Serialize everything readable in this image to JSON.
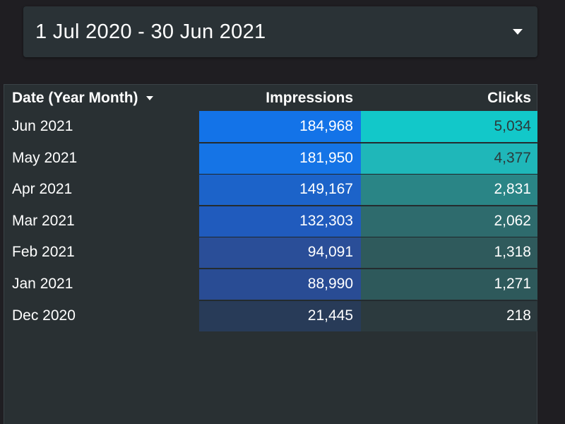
{
  "date_range": {
    "label": "1 Jul 2020 - 30 Jun 2021"
  },
  "table": {
    "headers": {
      "date": "Date (Year Month)",
      "impressions": "Impressions",
      "clicks": "Clicks"
    },
    "rows": [
      {
        "date": "Jun 2021",
        "impressions": "184,968",
        "clicks": "5,034",
        "impr_color": "#1373e8",
        "clicks_color": "#12c8c9",
        "clicks_text_color": "#2b3a3c"
      },
      {
        "date": "May 2021",
        "impressions": "181,950",
        "clicks": "4,377",
        "impr_color": "#1574e6",
        "clicks_color": "#1fb7b9",
        "clicks_text_color": "#2b3a3c"
      },
      {
        "date": "Apr 2021",
        "impressions": "149,167",
        "clicks": "2,831",
        "impr_color": "#1c63c9",
        "clicks_color": "#2a8586",
        "clicks_text_color": "#ffffff"
      },
      {
        "date": "Mar 2021",
        "impressions": "132,303",
        "clicks": "2,062",
        "impr_color": "#205bbd",
        "clicks_color": "#2e6b6d",
        "clicks_text_color": "#ffffff"
      },
      {
        "date": "Feb 2021",
        "impressions": "94,091",
        "clicks": "1,318",
        "impr_color": "#2a4e98",
        "clicks_color": "#2f5a5c",
        "clicks_text_color": "#ffffff"
      },
      {
        "date": "Jan 2021",
        "impressions": "88,990",
        "clicks": "1,271",
        "impr_color": "#294c94",
        "clicks_color": "#2e595b",
        "clicks_text_color": "#ffffff"
      },
      {
        "date": "Dec 2020",
        "impressions": "21,445",
        "clicks": "218",
        "impr_color": "#283b58",
        "clicks_color": "#2c3a3e",
        "clicks_text_color": "#ffffff"
      }
    ]
  }
}
